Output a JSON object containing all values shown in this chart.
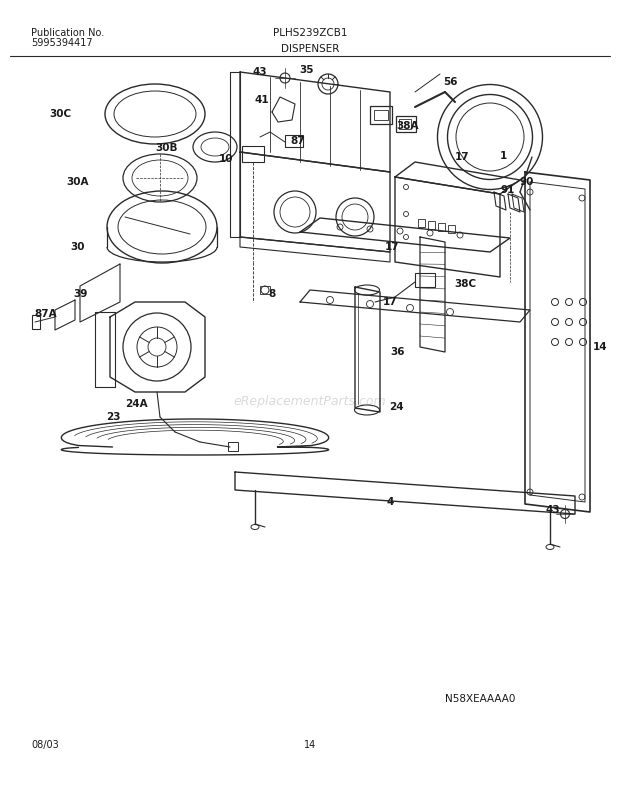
{
  "title_left_line1": "Publication No.",
  "title_left_line2": "5995394417",
  "title_center_top": "PLHS239ZCB1",
  "title_center_bottom": "DISPENSER",
  "footer_left": "08/03",
  "footer_center": "14",
  "watermark": "eReplacementParts.com",
  "diagram_code": "N58XEAAAA0",
  "bg_color": "#ffffff",
  "line_color": "#2a2a2a",
  "text_color": "#1a1a1a"
}
